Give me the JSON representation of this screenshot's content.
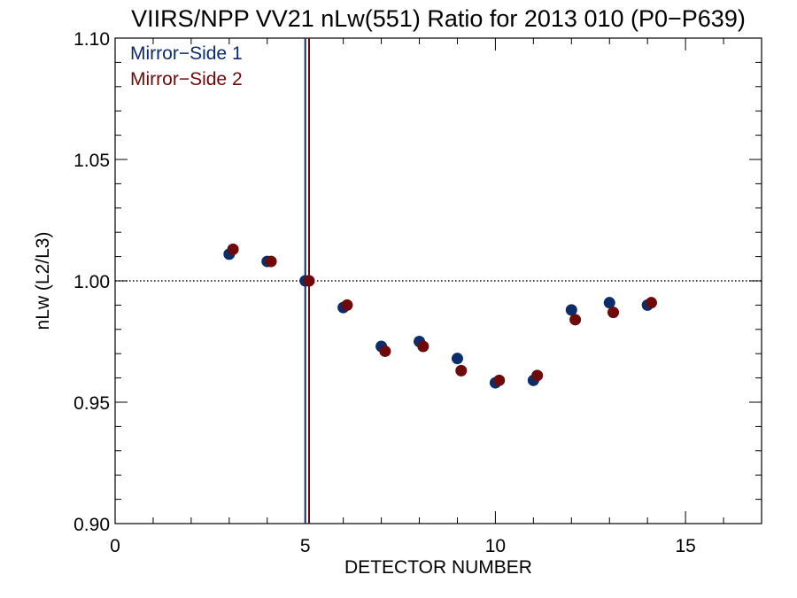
{
  "chart_data": {
    "type": "scatter",
    "title": "VIIRS/NPP VV21 nLw(551) Ratio for 2013 010 (P0−P639)",
    "xlabel": "DETECTOR NUMBER",
    "ylabel": "nLw (L2/L3)",
    "xlim": [
      0,
      17
    ],
    "ylim": [
      0.9,
      1.1
    ],
    "x_ticks": [
      0,
      5,
      10,
      15
    ],
    "x_tick_labels": [
      "0",
      "5",
      "10",
      "15"
    ],
    "x_minor_step": 1,
    "y_ticks": [
      0.9,
      0.95,
      1.0,
      1.05,
      1.1
    ],
    "y_tick_labels": [
      "0.90",
      "0.95",
      "1.00",
      "1.05",
      "1.10"
    ],
    "y_minor_step": 0.01,
    "grid": false,
    "reference_line": {
      "y": 1.0,
      "style": "dotted"
    },
    "legend_position": "top-left",
    "series": [
      {
        "name": "Mirror−Side 1",
        "color": "#0b2d6b",
        "x": [
          3,
          4,
          5,
          6,
          7,
          8,
          9,
          10,
          11,
          12,
          13,
          14
        ],
        "y": [
          1.011,
          1.008,
          1.0,
          0.989,
          0.973,
          0.975,
          0.968,
          0.958,
          0.959,
          0.988,
          0.991,
          0.99
        ],
        "vline_x": 5.0
      },
      {
        "name": "Mirror−Side 2",
        "color": "#6e0a0a",
        "x": [
          3.1,
          4.1,
          5.1,
          6.1,
          7.1,
          8.1,
          9.1,
          10.1,
          11.1,
          12.1,
          13.1,
          14.1
        ],
        "y": [
          1.013,
          1.008,
          1.0,
          0.99,
          0.971,
          0.973,
          0.963,
          0.959,
          0.961,
          0.984,
          0.987,
          0.991
        ],
        "vline_x": 5.1
      }
    ]
  }
}
